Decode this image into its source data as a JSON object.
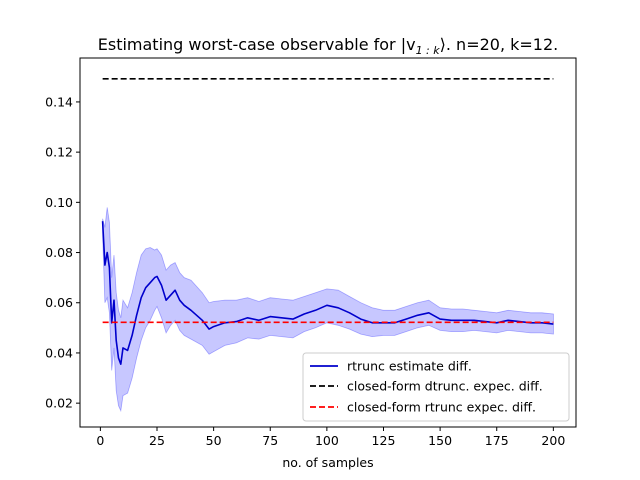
{
  "chart_data": {
    "type": "line",
    "title": "Estimating worst-case observable for |v",
    "title_sub": "1 : k",
    "title_tail": "⟩. n=20, k=12.",
    "xlabel": "no. of samples",
    "ylabel": "",
    "xlim": [
      -9,
      210
    ],
    "ylim": [
      0.0105,
      0.1575
    ],
    "xticks": [
      0,
      25,
      50,
      75,
      100,
      125,
      150,
      175,
      200
    ],
    "yticks": [
      0.02,
      0.04,
      0.06,
      0.08,
      0.1,
      0.12,
      0.14
    ],
    "xtick_labels": [
      "0",
      "25",
      "50",
      "75",
      "100",
      "125",
      "150",
      "175",
      "200"
    ],
    "ytick_labels": [
      "0.02",
      "0.04",
      "0.06",
      "0.08",
      "0.10",
      "0.12",
      "0.14"
    ],
    "grid": false,
    "legend_position": "bottom-right",
    "series": [
      {
        "name": "rtrunc estimate diff.",
        "style": "solid",
        "color": "#0000cc",
        "band_color": "#0000ff",
        "x": [
          1,
          2,
          3,
          4,
          5,
          6,
          7,
          8,
          9,
          10,
          12,
          14,
          16,
          18,
          20,
          22,
          24,
          25,
          27,
          29,
          31,
          33,
          35,
          37,
          40,
          45,
          48,
          50,
          55,
          60,
          65,
          70,
          75,
          80,
          85,
          90,
          95,
          100,
          105,
          110,
          115,
          120,
          125,
          130,
          135,
          140,
          145,
          150,
          155,
          160,
          165,
          170,
          175,
          180,
          185,
          190,
          195,
          200
        ],
        "y": [
          0.0925,
          0.075,
          0.08,
          0.074,
          0.052,
          0.061,
          0.045,
          0.038,
          0.0355,
          0.042,
          0.041,
          0.047,
          0.055,
          0.062,
          0.066,
          0.068,
          0.07,
          0.0705,
          0.067,
          0.061,
          0.063,
          0.065,
          0.061,
          0.059,
          0.057,
          0.053,
          0.0495,
          0.0505,
          0.052,
          0.0525,
          0.054,
          0.053,
          0.0545,
          0.054,
          0.0535,
          0.0555,
          0.057,
          0.059,
          0.058,
          0.056,
          0.0535,
          0.052,
          0.052,
          0.052,
          0.0535,
          0.055,
          0.056,
          0.0535,
          0.053,
          0.053,
          0.053,
          0.0525,
          0.052,
          0.053,
          0.0525,
          0.052,
          0.052,
          0.0515
        ],
        "lower": [
          0.087,
          0.06,
          0.062,
          0.056,
          0.033,
          0.042,
          0.025,
          0.019,
          0.017,
          0.023,
          0.024,
          0.03,
          0.038,
          0.045,
          0.05,
          0.053,
          0.057,
          0.0585,
          0.054,
          0.048,
          0.051,
          0.053,
          0.049,
          0.047,
          0.0455,
          0.043,
          0.0395,
          0.0405,
          0.043,
          0.044,
          0.046,
          0.0455,
          0.047,
          0.0465,
          0.046,
          0.0485,
          0.05,
          0.052,
          0.051,
          0.0495,
          0.0475,
          0.0465,
          0.047,
          0.047,
          0.0485,
          0.05,
          0.051,
          0.049,
          0.0485,
          0.0485,
          0.049,
          0.0485,
          0.048,
          0.049,
          0.0485,
          0.048,
          0.048,
          0.0475
        ],
        "upper": [
          0.0935,
          0.09,
          0.098,
          0.092,
          0.07,
          0.079,
          0.064,
          0.057,
          0.054,
          0.061,
          0.058,
          0.064,
          0.072,
          0.079,
          0.0815,
          0.082,
          0.081,
          0.0815,
          0.079,
          0.073,
          0.075,
          0.076,
          0.072,
          0.07,
          0.069,
          0.064,
          0.06,
          0.0605,
          0.061,
          0.061,
          0.062,
          0.0605,
          0.062,
          0.0615,
          0.061,
          0.0625,
          0.064,
          0.0655,
          0.065,
          0.0625,
          0.06,
          0.058,
          0.057,
          0.057,
          0.0585,
          0.06,
          0.061,
          0.058,
          0.0575,
          0.0575,
          0.057,
          0.0565,
          0.056,
          0.057,
          0.0565,
          0.056,
          0.056,
          0.0555
        ]
      },
      {
        "name": "closed-form dtrunc. expec. diff.",
        "style": "dashed",
        "color": "#000000",
        "x": [
          1,
          200
        ],
        "y": [
          0.1492,
          0.1492
        ]
      },
      {
        "name": "closed-form rtrunc expec. diff.",
        "style": "dashed",
        "color": "#ff0000",
        "x": [
          1,
          200
        ],
        "y": [
          0.0522,
          0.0522
        ]
      }
    ]
  }
}
